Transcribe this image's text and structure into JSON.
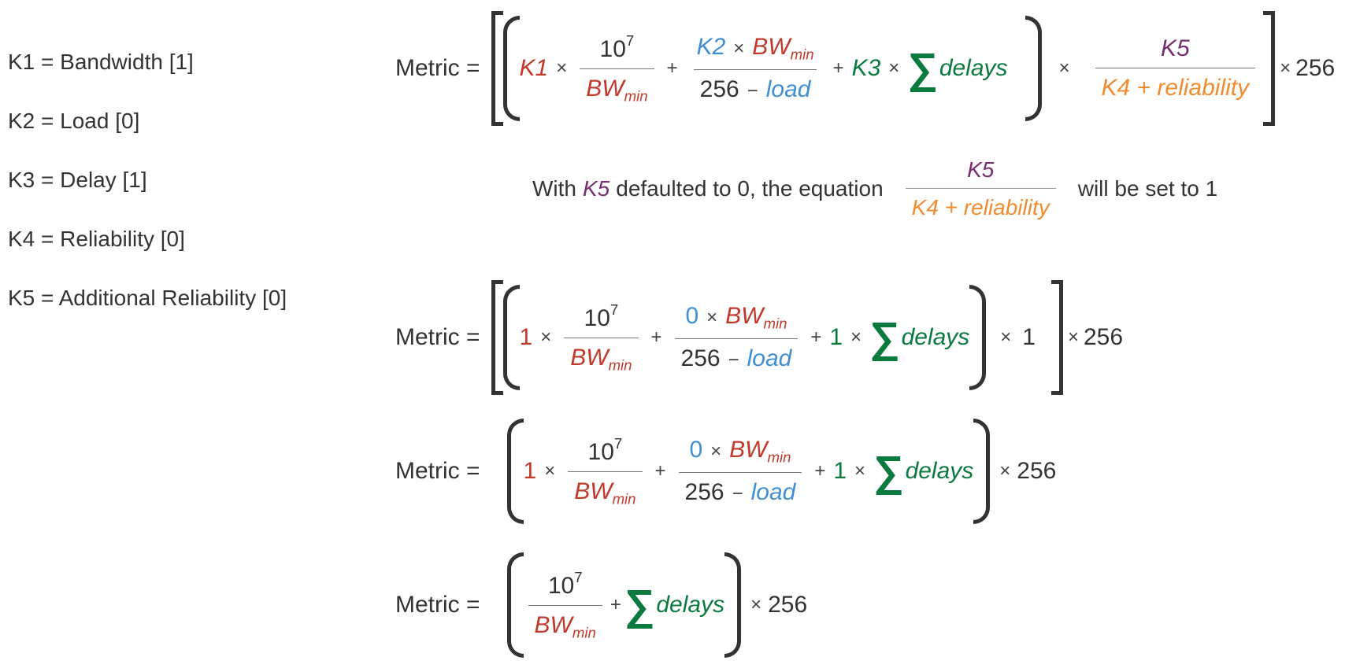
{
  "k_values": [
    {
      "text": "K1 = Bandwidth [1]"
    },
    {
      "text": "K2 = Load [0]"
    },
    {
      "text": "K3 = Delay [1]"
    },
    {
      "text": "K4 = Reliability [0]"
    },
    {
      "text": "K5 = Additional Reliability [0]"
    }
  ],
  "symbols": {
    "metric_label": "Metric =",
    "times": "×",
    "plus": "+",
    "minus": "−",
    "sigma": "∑",
    "ten": "10",
    "exp": "7",
    "bw": "BW",
    "min": "min",
    "load": "load",
    "delays": "delays",
    "two_fifty_six": "256",
    "one": "1",
    "zero": "0",
    "k1": "K1",
    "k2": "K2",
    "k3": "K3",
    "k5": "K5",
    "k4_plus_reliability": "K4 + reliability"
  },
  "note": {
    "with": "With",
    "k5": "K5",
    "defaulted": "defaulted to 0, the equation",
    "will_be_set": "will be set to 1"
  },
  "colors": {
    "bandwidth_red": "#c0392b",
    "load_blue": "#3f8fd4",
    "delay_green": "#0a7a3e",
    "k5_purple": "#7a2e72",
    "reliability_orange": "#f08c2f"
  }
}
